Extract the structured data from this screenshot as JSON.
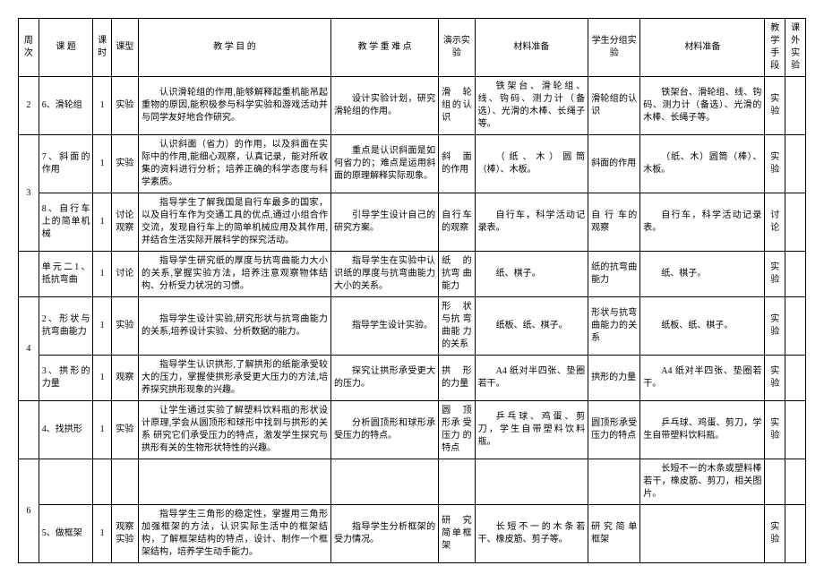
{
  "headers": {
    "week": "周次",
    "topic": "课 题",
    "hours": "课时",
    "type": "课型",
    "purpose": "教 学 目 的",
    "focus": "教 学 重 难 点",
    "demo": "演示实验",
    "material1": "材料准备",
    "group": "学生分组实验",
    "material2": "材料准备",
    "method": "教学手段",
    "extra": "课外实验"
  },
  "rows": [
    {
      "week": "2",
      "topic": "6、滑轮组",
      "hours": "1",
      "type": "实验",
      "purpose": "认识滑轮组的作用,能够解释起重机能吊起重物的原因,能积极参与科学实验和游戏活动并与同学友好地合作研究。",
      "focus": "设计实验计划，研究滑轮组的作用。",
      "demo": "滑 轮 组的认识",
      "material1": "铁架台、滑轮组、线、钩码、测力计（备选）、光滑的木棒、长绳子等。",
      "group": "滑轮组的认识",
      "material2": "铁架台、滑轮组、线、钩码、测力计（备选）、光滑的木棒、长绳子等。",
      "method": "实验",
      "extra": ""
    },
    {
      "week": "",
      "topic": "7、斜面的作用",
      "hours": "1",
      "type": "实验",
      "purpose": "认识斜面（省力）的作用，以及斜面在实际中的作用,能细心观察，认真记录，能对所收集的资料进行分析；培养正确的科学态度与科学素质。",
      "focus": "重点是认识斜面是如何省力的；难点是运用斜面的原理解释实际现象。",
      "demo": "斜 面 的作用",
      "material1": "（纸、木）圆筒（棒）、木板。",
      "group": "斜面的作用",
      "material2": "（纸、木）圆筒（棒）、木板。",
      "method": "实验",
      "extra": ""
    },
    {
      "week": "3",
      "topic": "8、自行车上的简单机械",
      "hours": "1",
      "type": "讨论观察",
      "purpose": "指导学生了解我国是自行车最多的国家，以及自行车作为交通工具的优点,通过小组合作交流，发现自行车上的简单机械应用及其作用,并结合生活实际开展科学的探究活动。",
      "focus": "引导学生设计自己的研究方案。",
      "demo": "自行车的观察",
      "material1": "自行车，科学活动记录表。",
      "group": "自 行 车的观察",
      "material2": "自行车，科学活动记录表。",
      "method": "讨论",
      "extra": ""
    },
    {
      "week": "",
      "topic": "单元二1、抵抗弯曲",
      "hours": "1",
      "type": "讨论",
      "purpose": "指导学生研究纸的厚度与抗弯曲能力大小的关系,掌握实验方法，培养注意观察物体结构、分析受力状况的习惯。",
      "focus": "指导学生在实验中认识纸的厚度与抗弯曲能力大小的关系。",
      "demo": "纸 的 抗弯 曲 能力",
      "material1": "纸、棋子。",
      "group": "纸的抗弯曲能力",
      "material2": "纸、棋子。",
      "method": "实验",
      "extra": ""
    },
    {
      "week": "",
      "topic": "2、形状与抗弯曲能力",
      "hours": "1",
      "type": "实验",
      "purpose": "指导学生设计实验,研究形状与抗弯曲能力的关系,培养设计实验、分析数据的能力。",
      "focus": "指导学生设计实验。",
      "demo": "形 状 与抗 弯 曲能 力 的关系",
      "material1": "纸板、纸、棋子。",
      "group": "形状与抗弯曲能力的关系",
      "material2": "纸板、纸、棋子。",
      "method": "实验",
      "extra": ""
    },
    {
      "week": "4",
      "topic": "3、拱形的力量",
      "hours": "1",
      "type": "观察",
      "purpose": "指导学生认识拱形,了解拱形的纸能承受较大的压力，掌握使拱形承受更大压力的方法,培养探究拱形现象的兴趣。",
      "focus": "探究让拱形承受更大的压力。",
      "demo": "拱 形 的力量",
      "material1": "A4 纸对半四张、垫圈若干。",
      "group": "拱形的力量",
      "material2": "A4 纸对半四张、垫圈若干。",
      "method": "实验",
      "extra": ""
    },
    {
      "week": "",
      "topic": "4、找拱形",
      "hours": "1",
      "type": "实验",
      "purpose": "让学生通过实验了解塑料饮料瓶的形状设计原理,学会从圆顶形和球形中找到与拱形的关系 研究它们承受压力的特点，激发学生探究与拱形有关的生物形状特性的兴趣。",
      "focus": "分析圆顶形和球形承受压力的特点。",
      "demo": "圆 顶 形承 受 压力 的 特点",
      "material1": "乒乓球、鸡蛋、剪刀，学生自带塑料饮料瓶。",
      "group": "圆顶形承受压力的特点",
      "material2": "乒乓球、鸡蛋、剪刀，学生自带塑料饮料瓶。",
      "method": "实验",
      "extra": ""
    },
    {
      "week": "",
      "topic": "",
      "hours": "",
      "type": "",
      "purpose": "",
      "focus": "",
      "demo": "",
      "material1": "",
      "group": "",
      "material2": "长短不一的木条或塑料棒若干，橡皮筋、剪刀，相关图片。",
      "method": "",
      "extra": ""
    },
    {
      "week": "6",
      "topic": "5、做框架",
      "hours": "1",
      "type": "观察实验",
      "purpose": "指导学生三角形的稳定性，掌握用三角形加强框架的方法，认识实际生活中的框架结构，了解框架结构的特点，设计、制作一个框架结构，培养学生动手能力。",
      "focus": "指导学生分析框架的受力情况。",
      "demo": "研 究 简单框架",
      "material1": "长短不一的木条若干、橡皮筋、剪子等。",
      "group": "研 究 简 单框架",
      "material2": "",
      "method": "实验",
      "extra": ""
    }
  ]
}
